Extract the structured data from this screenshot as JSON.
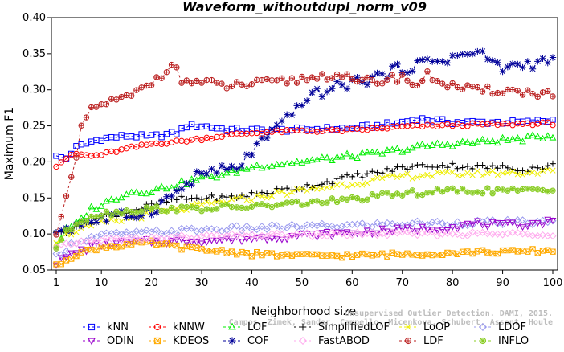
{
  "chart_data": {
    "type": "line",
    "title": "Waveform_withoutdupl_norm_v09",
    "xlabel": "Neighborhood size",
    "ylabel": "Maximum F1",
    "xlim": [
      1,
      100
    ],
    "ylim": [
      0.05,
      0.4
    ],
    "x_ticks": [
      1,
      10,
      20,
      30,
      40,
      50,
      60,
      70,
      80,
      90,
      100
    ],
    "y_ticks": [
      0.05,
      0.1,
      0.15,
      0.2,
      0.25,
      0.3,
      0.35,
      0.4
    ],
    "x_tick_labels": [
      "1",
      "10",
      "20",
      "30",
      "40",
      "50",
      "60",
      "70",
      "80",
      "90",
      "100"
    ],
    "y_tick_labels": [
      "0.05",
      "0.10",
      "0.15",
      "0.20",
      "0.25",
      "0.30",
      "0.35",
      "0.40"
    ],
    "grid": false,
    "legend_position": "bottom",
    "x": "1..100",
    "series": [
      {
        "name": "kNN",
        "color": "#0000ff",
        "marker": "square",
        "points": [
          [
            1,
            0.207
          ],
          [
            3,
            0.205
          ],
          [
            5,
            0.22
          ],
          [
            8,
            0.228
          ],
          [
            10,
            0.232
          ],
          [
            15,
            0.236
          ],
          [
            20,
            0.235
          ],
          [
            25,
            0.24
          ],
          [
            27,
            0.25
          ],
          [
            30,
            0.25
          ],
          [
            35,
            0.245
          ],
          [
            40,
            0.244
          ],
          [
            45,
            0.244
          ],
          [
            50,
            0.245
          ],
          [
            55,
            0.246
          ],
          [
            60,
            0.247
          ],
          [
            65,
            0.25
          ],
          [
            70,
            0.255
          ],
          [
            73,
            0.26
          ],
          [
            80,
            0.255
          ],
          [
            85,
            0.255
          ],
          [
            90,
            0.255
          ],
          [
            95,
            0.255
          ],
          [
            100,
            0.258
          ]
        ]
      },
      {
        "name": "kNNW",
        "color": "#ff0000",
        "marker": "circle",
        "points": [
          [
            1,
            0.195
          ],
          [
            3,
            0.205
          ],
          [
            5,
            0.211
          ],
          [
            8,
            0.208
          ],
          [
            10,
            0.21
          ],
          [
            15,
            0.218
          ],
          [
            20,
            0.225
          ],
          [
            25,
            0.228
          ],
          [
            30,
            0.232
          ],
          [
            35,
            0.237
          ],
          [
            40,
            0.24
          ],
          [
            45,
            0.242
          ],
          [
            50,
            0.243
          ],
          [
            55,
            0.243
          ],
          [
            60,
            0.244
          ],
          [
            65,
            0.246
          ],
          [
            70,
            0.249
          ],
          [
            75,
            0.25
          ],
          [
            80,
            0.251
          ],
          [
            85,
            0.252
          ],
          [
            90,
            0.252
          ],
          [
            95,
            0.253
          ],
          [
            100,
            0.253
          ]
        ]
      },
      {
        "name": "LOF",
        "color": "#00ee00",
        "marker": "triangle",
        "points": [
          [
            1,
            0.085
          ],
          [
            3,
            0.105
          ],
          [
            5,
            0.113
          ],
          [
            8,
            0.135
          ],
          [
            10,
            0.14
          ],
          [
            15,
            0.157
          ],
          [
            20,
            0.16
          ],
          [
            25,
            0.168
          ],
          [
            30,
            0.177
          ],
          [
            35,
            0.183
          ],
          [
            40,
            0.193
          ],
          [
            45,
            0.197
          ],
          [
            50,
            0.2
          ],
          [
            55,
            0.204
          ],
          [
            60,
            0.208
          ],
          [
            65,
            0.211
          ],
          [
            70,
            0.217
          ],
          [
            75,
            0.222
          ],
          [
            80,
            0.225
          ],
          [
            85,
            0.227
          ],
          [
            90,
            0.23
          ],
          [
            95,
            0.232
          ],
          [
            100,
            0.237
          ]
        ]
      },
      {
        "name": "SimplifiedLOF",
        "color": "#000000",
        "marker": "plus",
        "points": [
          [
            1,
            0.1
          ],
          [
            3,
            0.105
          ],
          [
            5,
            0.112
          ],
          [
            8,
            0.118
          ],
          [
            10,
            0.125
          ],
          [
            15,
            0.13
          ],
          [
            20,
            0.14
          ],
          [
            25,
            0.148
          ],
          [
            30,
            0.15
          ],
          [
            35,
            0.15
          ],
          [
            40,
            0.155
          ],
          [
            45,
            0.16
          ],
          [
            50,
            0.165
          ],
          [
            55,
            0.172
          ],
          [
            60,
            0.18
          ],
          [
            65,
            0.185
          ],
          [
            70,
            0.192
          ],
          [
            75,
            0.195
          ],
          [
            80,
            0.195
          ],
          [
            85,
            0.193
          ],
          [
            90,
            0.192
          ],
          [
            95,
            0.19
          ],
          [
            100,
            0.195
          ]
        ]
      },
      {
        "name": "LoOP",
        "color": "#eeee00",
        "marker": "x",
        "points": [
          [
            1,
            0.09
          ],
          [
            3,
            0.098
          ],
          [
            5,
            0.105
          ],
          [
            8,
            0.11
          ],
          [
            10,
            0.115
          ],
          [
            15,
            0.12
          ],
          [
            20,
            0.128
          ],
          [
            25,
            0.133
          ],
          [
            30,
            0.14
          ],
          [
            35,
            0.145
          ],
          [
            40,
            0.15
          ],
          [
            45,
            0.156
          ],
          [
            50,
            0.16
          ],
          [
            55,
            0.165
          ],
          [
            60,
            0.17
          ],
          [
            65,
            0.175
          ],
          [
            70,
            0.18
          ],
          [
            75,
            0.182
          ],
          [
            80,
            0.183
          ],
          [
            85,
            0.184
          ],
          [
            90,
            0.185
          ],
          [
            95,
            0.185
          ],
          [
            100,
            0.187
          ]
        ]
      },
      {
        "name": "LDOF",
        "color": "#9999ee",
        "marker": "diamond",
        "points": [
          [
            1,
            0.07
          ],
          [
            3,
            0.08
          ],
          [
            5,
            0.09
          ],
          [
            8,
            0.095
          ],
          [
            10,
            0.098
          ],
          [
            15,
            0.1
          ],
          [
            20,
            0.102
          ],
          [
            25,
            0.104
          ],
          [
            30,
            0.106
          ],
          [
            35,
            0.107
          ],
          [
            40,
            0.108
          ],
          [
            45,
            0.109
          ],
          [
            50,
            0.11
          ],
          [
            55,
            0.111
          ],
          [
            60,
            0.112
          ],
          [
            65,
            0.113
          ],
          [
            70,
            0.114
          ],
          [
            75,
            0.115
          ],
          [
            80,
            0.115
          ],
          [
            85,
            0.116
          ],
          [
            90,
            0.116
          ],
          [
            95,
            0.116
          ],
          [
            100,
            0.116
          ]
        ]
      },
      {
        "name": "ODIN",
        "color": "#9900cc",
        "marker": "triangle-down",
        "points": [
          [
            1,
            0.06
          ],
          [
            3,
            0.068
          ],
          [
            5,
            0.075
          ],
          [
            8,
            0.082
          ],
          [
            10,
            0.086
          ],
          [
            15,
            0.088
          ],
          [
            20,
            0.09
          ],
          [
            25,
            0.09
          ],
          [
            30,
            0.091
          ],
          [
            35,
            0.092
          ],
          [
            40,
            0.094
          ],
          [
            45,
            0.096
          ],
          [
            50,
            0.098
          ],
          [
            55,
            0.1
          ],
          [
            60,
            0.102
          ],
          [
            65,
            0.104
          ],
          [
            70,
            0.106
          ],
          [
            75,
            0.108
          ],
          [
            80,
            0.11
          ],
          [
            85,
            0.115
          ],
          [
            90,
            0.112
          ],
          [
            95,
            0.114
          ],
          [
            100,
            0.118
          ]
        ]
      },
      {
        "name": "KDEOS",
        "color": "#ffaa00",
        "marker": "square-x",
        "points": [
          [
            1,
            0.055
          ],
          [
            3,
            0.065
          ],
          [
            5,
            0.072
          ],
          [
            8,
            0.078
          ],
          [
            10,
            0.082
          ],
          [
            15,
            0.085
          ],
          [
            20,
            0.088
          ],
          [
            25,
            0.082
          ],
          [
            30,
            0.078
          ],
          [
            35,
            0.076
          ],
          [
            40,
            0.072
          ],
          [
            45,
            0.071
          ],
          [
            50,
            0.07
          ],
          [
            55,
            0.07
          ],
          [
            60,
            0.07
          ],
          [
            65,
            0.071
          ],
          [
            70,
            0.072
          ],
          [
            75,
            0.073
          ],
          [
            80,
            0.074
          ],
          [
            85,
            0.075
          ],
          [
            90,
            0.075
          ],
          [
            95,
            0.076
          ],
          [
            100,
            0.077
          ]
        ]
      },
      {
        "name": "COF",
        "color": "#000099",
        "marker": "asterisk",
        "points": [
          [
            1,
            0.105
          ],
          [
            3,
            0.108
          ],
          [
            5,
            0.112
          ],
          [
            8,
            0.118
          ],
          [
            10,
            0.12
          ],
          [
            15,
            0.125
          ],
          [
            20,
            0.133
          ],
          [
            25,
            0.158
          ],
          [
            30,
            0.185
          ],
          [
            35,
            0.188
          ],
          [
            38,
            0.195
          ],
          [
            40,
            0.215
          ],
          [
            42,
            0.228
          ],
          [
            45,
            0.245
          ],
          [
            48,
            0.265
          ],
          [
            50,
            0.285
          ],
          [
            55,
            0.3
          ],
          [
            60,
            0.31
          ],
          [
            65,
            0.318
          ],
          [
            70,
            0.33
          ],
          [
            75,
            0.338
          ],
          [
            80,
            0.345
          ],
          [
            85,
            0.352
          ],
          [
            90,
            0.33
          ],
          [
            95,
            0.336
          ],
          [
            100,
            0.34
          ]
        ]
      },
      {
        "name": "FastABOD",
        "color": "#ffaaee",
        "marker": "diamond-filled",
        "points": [
          [
            1,
            0.08
          ],
          [
            3,
            0.085
          ],
          [
            5,
            0.088
          ],
          [
            8,
            0.09
          ],
          [
            10,
            0.092
          ],
          [
            15,
            0.093
          ],
          [
            20,
            0.094
          ],
          [
            25,
            0.095
          ],
          [
            30,
            0.096
          ],
          [
            35,
            0.097
          ],
          [
            40,
            0.098
          ],
          [
            45,
            0.098
          ],
          [
            50,
            0.099
          ],
          [
            55,
            0.099
          ],
          [
            60,
            0.1
          ],
          [
            65,
            0.1
          ],
          [
            70,
            0.1
          ],
          [
            75,
            0.1
          ],
          [
            80,
            0.1
          ],
          [
            85,
            0.1
          ],
          [
            90,
            0.1
          ],
          [
            95,
            0.1
          ],
          [
            100,
            0.1
          ]
        ]
      },
      {
        "name": "LDF",
        "color": "#bb2222",
        "marker": "circle-plus",
        "points": [
          [
            1,
            0.105
          ],
          [
            3,
            0.15
          ],
          [
            5,
            0.2
          ],
          [
            6,
            0.25
          ],
          [
            8,
            0.27
          ],
          [
            10,
            0.28
          ],
          [
            13,
            0.285
          ],
          [
            15,
            0.288
          ],
          [
            18,
            0.3
          ],
          [
            20,
            0.31
          ],
          [
            22,
            0.322
          ],
          [
            24,
            0.338
          ],
          [
            26,
            0.313
          ],
          [
            30,
            0.31
          ],
          [
            35,
            0.305
          ],
          [
            40,
            0.308
          ],
          [
            45,
            0.31
          ],
          [
            50,
            0.315
          ],
          [
            55,
            0.32
          ],
          [
            58,
            0.322
          ],
          [
            60,
            0.31
          ],
          [
            65,
            0.312
          ],
          [
            70,
            0.318
          ],
          [
            73,
            0.306
          ],
          [
            75,
            0.32
          ],
          [
            80,
            0.305
          ],
          [
            85,
            0.298
          ],
          [
            90,
            0.3
          ],
          [
            95,
            0.296
          ],
          [
            100,
            0.295
          ]
        ]
      },
      {
        "name": "INFLO",
        "color": "#88cc22",
        "marker": "circle-star",
        "points": [
          [
            1,
            0.082
          ],
          [
            3,
            0.102
          ],
          [
            5,
            0.115
          ],
          [
            8,
            0.125
          ],
          [
            10,
            0.128
          ],
          [
            15,
            0.132
          ],
          [
            20,
            0.135
          ],
          [
            25,
            0.135
          ],
          [
            30,
            0.135
          ],
          [
            35,
            0.137
          ],
          [
            40,
            0.138
          ],
          [
            45,
            0.14
          ],
          [
            50,
            0.143
          ],
          [
            55,
            0.145
          ],
          [
            60,
            0.148
          ],
          [
            65,
            0.152
          ],
          [
            70,
            0.156
          ],
          [
            75,
            0.158
          ],
          [
            80,
            0.16
          ],
          [
            85,
            0.16
          ],
          [
            90,
            0.16
          ],
          [
            95,
            0.16
          ],
          [
            100,
            0.16
          ]
        ]
      }
    ],
    "watermark": [
      "Campos, Zimek, Sander, Campello, Micenkova, Schubert, Assent, Houle",
      "Unsupervised Outlier Detection. DAMI, 2015."
    ],
    "legend_rows": [
      [
        "kNN",
        "kNNW",
        "LOF",
        "SimplifiedLOF",
        "LoOP",
        "LDOF"
      ],
      [
        "ODIN",
        "KDEOS",
        "COF",
        "FastABOD",
        "LDF",
        "INFLO"
      ]
    ]
  }
}
